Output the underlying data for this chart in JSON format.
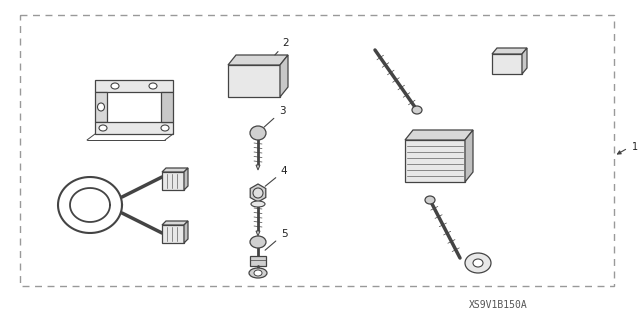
{
  "bg_color": "#ffffff",
  "border_color": "#999999",
  "code_label": "XS9V1B150A",
  "labels": {
    "1": "1",
    "2": "2",
    "3": "3",
    "4": "4",
    "5": "5"
  },
  "text_color": "#222222",
  "line_color": "#444444",
  "light_fill": "#e8e8e8",
  "mid_fill": "#d0d0d0",
  "figsize": [
    6.4,
    3.19
  ],
  "dpi": 100,
  "xlim": [
    0,
    640
  ],
  "ylim": [
    0,
    319
  ]
}
